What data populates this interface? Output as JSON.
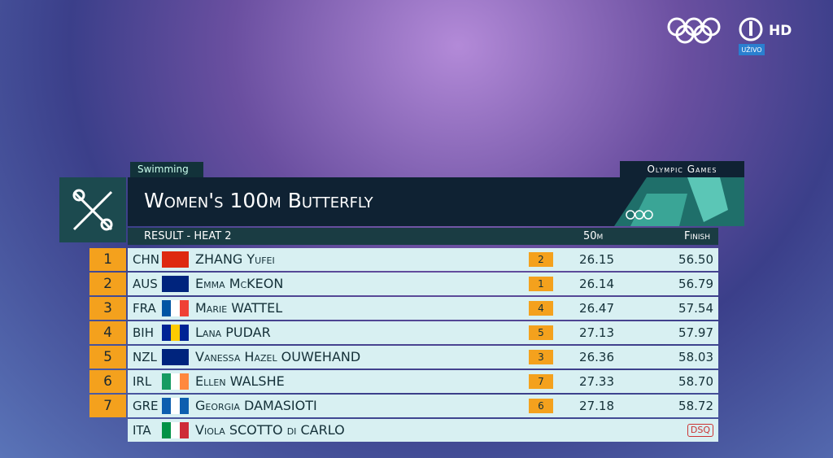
{
  "broadcaster": {
    "quality": "HD",
    "live": "UŽIVO"
  },
  "header": {
    "sport": "Swimming",
    "event": "Women's 100m Butterfly",
    "brand": "Olympic Games"
  },
  "subheader": {
    "result": "RESULT - HEAT 2",
    "split_column": "50m",
    "finish_column": "Finish"
  },
  "table": {
    "rows": [
      {
        "rank": 1,
        "country": "CHN",
        "name": "ZHANG Yufei",
        "split_rank": 2,
        "split": "26.15",
        "finish": "56.50"
      },
      {
        "rank": 2,
        "country": "AUS",
        "name": "Emma McKEON",
        "split_rank": 1,
        "split": "26.14",
        "finish": "56.79"
      },
      {
        "rank": 3,
        "country": "FRA",
        "name": "Marie WATTEL",
        "split_rank": 4,
        "split": "26.47",
        "finish": "57.54"
      },
      {
        "rank": 4,
        "country": "BIH",
        "name": "Lana PUDAR",
        "split_rank": 5,
        "split": "27.13",
        "finish": "57.97"
      },
      {
        "rank": 5,
        "country": "NZL",
        "name": "Vanessa Hazel OUWEHAND",
        "split_rank": 3,
        "split": "26.36",
        "finish": "58.03"
      },
      {
        "rank": 6,
        "country": "IRL",
        "name": "Ellen WALSHE",
        "split_rank": 7,
        "split": "27.33",
        "finish": "58.70"
      },
      {
        "rank": 7,
        "country": "GRE",
        "name": "Georgia DAMASIOTI",
        "split_rank": 6,
        "split": "27.18",
        "finish": "58.72"
      },
      {
        "country": "ITA",
        "name": "Viola SCOTTO di CARLO",
        "status": "DSQ"
      }
    ]
  }
}
